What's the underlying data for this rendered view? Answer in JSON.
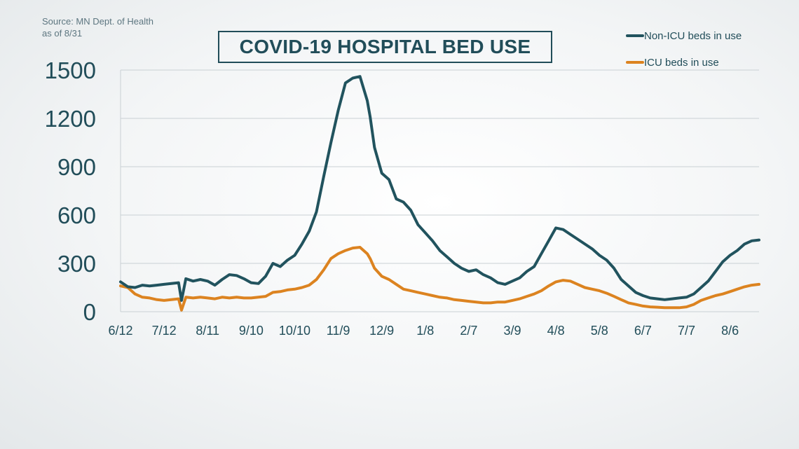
{
  "source": {
    "line1": "Source: MN Dept. of Health",
    "line2": "as of 8/31"
  },
  "colors": {
    "non_icu": "#21535e",
    "icu": "#dc8320",
    "grid": "#c9d0d4",
    "text": "#214d59"
  },
  "chart_data": {
    "type": "line",
    "title": "COVID-19 HOSPITAL BED USE",
    "xlabel": "",
    "ylabel": "",
    "ylim": [
      0,
      1500
    ],
    "yticks": [
      0,
      300,
      600,
      900,
      1200,
      1500
    ],
    "ytick_labels": [
      "0",
      "300",
      "600",
      "900",
      "1200",
      "1500"
    ],
    "xtick_labels": [
      "6/12",
      "7/12",
      "8/11",
      "9/10",
      "10/10",
      "11/9",
      "12/9",
      "1/8",
      "2/7",
      "3/9",
      "4/8",
      "5/8",
      "6/7",
      "7/7",
      "8/6"
    ],
    "xtick_day": [
      0,
      30,
      60,
      90,
      120,
      150,
      180,
      210,
      240,
      270,
      300,
      330,
      360,
      390,
      420
    ],
    "grid": true,
    "legend": "top-right",
    "series": [
      {
        "name": "Non-ICU beds in use",
        "color": "#21535e",
        "x": [
          0,
          5,
          10,
          15,
          20,
          25,
          30,
          35,
          40,
          42,
          45,
          50,
          55,
          60,
          65,
          70,
          75,
          80,
          85,
          90,
          95,
          100,
          105,
          110,
          115,
          120,
          125,
          130,
          135,
          140,
          145,
          150,
          155,
          160,
          165,
          170,
          172,
          175,
          180,
          185,
          190,
          195,
          200,
          205,
          210,
          215,
          220,
          225,
          230,
          235,
          240,
          245,
          250,
          255,
          260,
          265,
          270,
          275,
          280,
          285,
          290,
          295,
          300,
          305,
          310,
          315,
          320,
          325,
          330,
          335,
          340,
          345,
          350,
          355,
          360,
          365,
          370,
          375,
          380,
          385,
          390,
          395,
          400,
          405,
          410,
          415,
          420,
          425,
          430,
          435,
          440
        ],
        "values": [
          185,
          155,
          150,
          165,
          160,
          165,
          170,
          175,
          180,
          70,
          205,
          190,
          200,
          190,
          165,
          200,
          230,
          225,
          205,
          180,
          175,
          220,
          300,
          280,
          320,
          350,
          420,
          500,
          620,
          840,
          1050,
          1250,
          1420,
          1450,
          1460,
          1310,
          1210,
          1020,
          860,
          820,
          700,
          680,
          630,
          540,
          490,
          440,
          380,
          340,
          300,
          270,
          250,
          260,
          230,
          210,
          180,
          170,
          190,
          210,
          250,
          280,
          360,
          440,
          520,
          510,
          480,
          450,
          420,
          390,
          350,
          320,
          270,
          200,
          160,
          120,
          100,
          85,
          80,
          75,
          80,
          85,
          90,
          110,
          150,
          190,
          250,
          310,
          350,
          380,
          420,
          440,
          445
        ]
      },
      {
        "name": "ICU beds in use",
        "color": "#dc8320",
        "x": [
          0,
          5,
          10,
          15,
          20,
          25,
          30,
          35,
          40,
          42,
          45,
          50,
          55,
          60,
          65,
          70,
          75,
          80,
          85,
          90,
          95,
          100,
          105,
          110,
          115,
          120,
          125,
          130,
          135,
          140,
          145,
          150,
          155,
          160,
          165,
          170,
          172,
          175,
          180,
          185,
          190,
          195,
          200,
          205,
          210,
          215,
          220,
          225,
          230,
          235,
          240,
          245,
          250,
          255,
          260,
          265,
          270,
          275,
          280,
          285,
          290,
          295,
          300,
          305,
          310,
          315,
          320,
          325,
          330,
          335,
          340,
          345,
          350,
          355,
          360,
          365,
          370,
          375,
          380,
          385,
          390,
          395,
          400,
          405,
          410,
          415,
          420,
          425,
          430,
          435,
          440
        ],
        "values": [
          160,
          150,
          110,
          90,
          85,
          75,
          70,
          75,
          80,
          10,
          90,
          85,
          90,
          85,
          80,
          90,
          85,
          90,
          85,
          85,
          90,
          95,
          120,
          125,
          135,
          140,
          150,
          165,
          200,
          260,
          330,
          360,
          380,
          395,
          400,
          360,
          330,
          270,
          220,
          200,
          170,
          140,
          130,
          120,
          110,
          100,
          90,
          85,
          75,
          70,
          65,
          60,
          55,
          55,
          60,
          60,
          70,
          80,
          95,
          110,
          130,
          160,
          185,
          195,
          190,
          170,
          150,
          140,
          130,
          115,
          95,
          75,
          55,
          45,
          35,
          30,
          28,
          25,
          25,
          25,
          30,
          45,
          70,
          85,
          100,
          110,
          125,
          140,
          155,
          165,
          170
        ]
      }
    ]
  }
}
